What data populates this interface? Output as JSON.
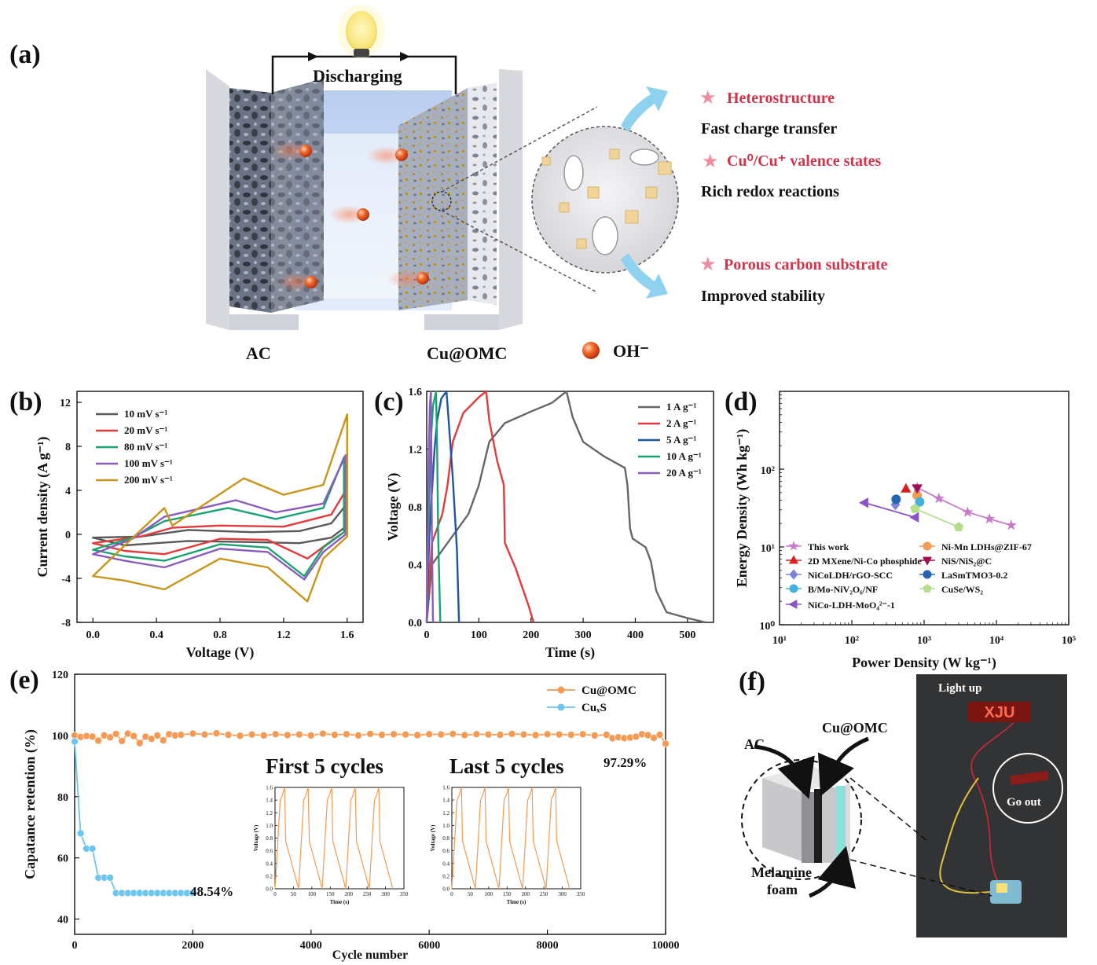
{
  "colors": {
    "cv": [
      "#595959",
      "#e23b3b",
      "#1aa36f",
      "#8a5cc0",
      "#c7951a"
    ],
    "gcd": [
      "#666666",
      "#e23b3b",
      "#1f56a0",
      "#1aa36f",
      "#8a5cc0"
    ],
    "cuomc": "#f39a55",
    "cuxs": "#6ec5ef",
    "accent": "#d2354b",
    "arrow": "#8ed2ef"
  },
  "panel_a": {
    "label": "(a)",
    "discharging": "Discharging",
    "left_electrode": "AC",
    "right_electrode": "Cu@OMC",
    "ion": "OH⁻",
    "features": [
      {
        "title": "Heterostructure",
        "desc": "Fast charge transfer"
      },
      {
        "title": "Cu⁰/Cu⁺ valence states",
        "desc": "Rich redox reactions"
      },
      {
        "title": "Porous carbon substrate",
        "desc": "Improved stability"
      }
    ]
  },
  "panel_f": {
    "label": "(f)",
    "ac": "AC",
    "cuomc": "Cu@OMC",
    "foam_line1": "Melamine",
    "foam_line2": "foam",
    "light_up": "Light up",
    "go_out": "Go out",
    "sign_text": "XJU"
  },
  "chart_data": [
    {
      "id": "b",
      "label": "(b)",
      "type": "line",
      "xlabel": "Voltage (V)",
      "ylabel": "Current density (A g⁻¹)",
      "xlim": [
        -0.1,
        1.7
      ],
      "ylim": [
        -8,
        13
      ],
      "xticks": [
        0.0,
        0.4,
        0.8,
        1.2,
        1.6
      ],
      "yticks": [
        -8,
        -4,
        0,
        4,
        8,
        12
      ],
      "series": [
        {
          "name": "10 mV s⁻¹",
          "x": [
            0,
            0.3,
            0.6,
            1.0,
            1.3,
            1.5,
            1.6,
            1.6,
            1.5,
            1.3,
            1.0,
            0.6,
            0.4,
            0.2,
            0
          ],
          "y": [
            -0.3,
            -0.2,
            0.4,
            0.2,
            0.3,
            1.0,
            2.8,
            0.8,
            -0.3,
            -0.8,
            -0.7,
            -0.6,
            -0.8,
            -1.0,
            -0.3
          ]
        },
        {
          "name": "20 mV s⁻¹",
          "x": [
            0,
            0.3,
            0.5,
            0.8,
            1.2,
            1.5,
            1.6,
            1.6,
            1.5,
            1.35,
            1.1,
            0.8,
            0.45,
            0.2,
            0
          ],
          "y": [
            -0.8,
            -0.2,
            0.6,
            0.8,
            0.7,
            1.8,
            4.2,
            0.4,
            -0.6,
            -2.2,
            -0.5,
            -0.4,
            -1.8,
            -1.5,
            -0.8
          ]
        },
        {
          "name": "80 mV s⁻¹",
          "x": [
            0,
            0.25,
            0.45,
            0.85,
            1.15,
            1.45,
            1.58,
            1.58,
            1.45,
            1.33,
            1.1,
            0.8,
            0.45,
            0.2,
            0
          ],
          "y": [
            -1.4,
            -0.3,
            1.2,
            2.4,
            1.4,
            2.4,
            7.0,
            0.2,
            -1.2,
            -3.8,
            -1.2,
            -0.9,
            -2.4,
            -2.0,
            -1.4
          ]
        },
        {
          "name": "100 mV s⁻¹",
          "x": [
            0,
            0.25,
            0.45,
            0.9,
            1.15,
            1.45,
            1.59,
            1.59,
            1.45,
            1.33,
            1.1,
            0.8,
            0.45,
            0.2,
            0
          ],
          "y": [
            -1.8,
            -0.4,
            1.6,
            3.1,
            2.0,
            2.8,
            7.2,
            0.0,
            -1.6,
            -4.1,
            -1.6,
            -1.3,
            -3.0,
            -2.4,
            -1.8
          ]
        },
        {
          "name": "200 mV s⁻¹",
          "x": [
            0,
            0.2,
            0.45,
            0.5,
            0.95,
            1.2,
            1.45,
            1.6,
            1.6,
            1.45,
            1.35,
            1.1,
            0.8,
            0.45,
            0.2,
            0
          ],
          "y": [
            -3.8,
            -1.0,
            2.4,
            0.8,
            5.1,
            3.6,
            4.5,
            10.9,
            -0.2,
            -2.2,
            -6.1,
            -3.0,
            -2.2,
            -5.0,
            -4.2,
            -3.8
          ]
        }
      ]
    },
    {
      "id": "c",
      "label": "(c)",
      "type": "line",
      "xlabel": "Time (s)",
      "ylabel": "Voltage (V)",
      "xlim": [
        0,
        550
      ],
      "ylim": [
        0,
        1.6
      ],
      "xticks": [
        0,
        100,
        200,
        300,
        400,
        500
      ],
      "yticks": [
        0.0,
        0.4,
        0.8,
        1.2,
        1.6
      ],
      "series": [
        {
          "name": "1 A g⁻¹",
          "x": [
            0,
            10,
            40,
            80,
            100,
            120,
            150,
            200,
            240,
            268,
            280,
            300,
            340,
            380,
            385,
            390,
            395,
            420,
            430,
            440,
            460,
            500,
            535
          ],
          "y": [
            0,
            0.4,
            0.55,
            0.75,
            0.95,
            1.25,
            1.38,
            1.46,
            1.52,
            1.6,
            1.42,
            1.25,
            1.15,
            1.07,
            0.95,
            0.65,
            0.58,
            0.52,
            0.42,
            0.22,
            0.07,
            0.03,
            0
          ]
        },
        {
          "name": "2 A g⁻¹",
          "x": [
            0,
            10,
            30,
            40,
            50,
            70,
            100,
            114,
            120,
            135,
            148,
            150,
            170,
            195,
            205
          ],
          "y": [
            0,
            0.55,
            0.75,
            0.95,
            1.25,
            1.45,
            1.56,
            1.6,
            1.4,
            1.12,
            0.95,
            0.55,
            0.38,
            0.12,
            0
          ]
        },
        {
          "name": "5 A g⁻¹",
          "x": [
            0,
            5,
            15,
            20,
            28,
            38,
            42,
            50,
            58,
            62
          ],
          "y": [
            0,
            0.6,
            1.2,
            1.4,
            1.55,
            1.6,
            1.4,
            1.0,
            0.5,
            0
          ]
        },
        {
          "name": "10 A g⁻¹",
          "x": [
            0,
            3,
            8,
            12,
            18,
            20,
            22,
            26
          ],
          "y": [
            0,
            0.6,
            1.25,
            1.5,
            1.6,
            1.2,
            0.6,
            0
          ]
        },
        {
          "name": "20 A g⁻¹",
          "x": [
            0,
            2,
            4,
            6,
            8,
            9,
            10,
            12
          ],
          "y": [
            0,
            0.6,
            1.2,
            1.5,
            1.6,
            1.2,
            0.6,
            0
          ]
        }
      ]
    },
    {
      "id": "d",
      "label": "(d)",
      "type": "scatter",
      "scale": "log",
      "xlabel": "Power Density (W kg⁻¹)",
      "ylabel": "Energy Density (Wh kg⁻¹)",
      "xlim": [
        10,
        100000
      ],
      "ylim": [
        1,
        1000
      ],
      "xtick_labels": [
        "10¹",
        "10²",
        "10³",
        "10⁴",
        "10⁵"
      ],
      "ytick_labels": [
        "10⁰",
        "10¹",
        "10²"
      ],
      "series": [
        {
          "name": "This work",
          "marker": "star",
          "color": "#c77bc7",
          "x": [
            800,
            1600,
            4000,
            8000,
            16000
          ],
          "y": [
            58,
            42,
            28,
            23,
            19
          ]
        },
        {
          "name": "Ni-Mn LDHs@ZIF-67",
          "marker": "circle",
          "color": "#f39a55",
          "x": [
            800
          ],
          "y": [
            46
          ]
        },
        {
          "name": "2D MXene/Ni-Co phosphide",
          "marker": "triangle",
          "color": "#d42020",
          "x": [
            560
          ],
          "y": [
            56
          ]
        },
        {
          "name": "NiS/NiS₂@C",
          "marker": "triangle-down",
          "color": "#a01050",
          "x": [
            800
          ],
          "y": [
            57
          ]
        },
        {
          "name": "NiCoLDH/rGO-SCC",
          "marker": "diamond",
          "color": "#7b85d8",
          "x": [
            400
          ],
          "y": [
            35
          ]
        },
        {
          "name": "LaSmTMO3-0.2",
          "marker": "circle",
          "color": "#2266b2",
          "x": [
            410
          ],
          "y": [
            41
          ]
        },
        {
          "name": "B/Mo-NiV₂O₆/NF",
          "marker": "circle",
          "color": "#45b0e0",
          "x": [
            870
          ],
          "y": [
            38
          ]
        },
        {
          "name": "CuSe/WS₂",
          "marker": "pentagon",
          "color": "#b4de8c",
          "x": [
            750,
            3000
          ],
          "y": [
            31,
            18
          ]
        },
        {
          "name": "NiCo-LDH-MoO₄²⁻-1",
          "marker": "triangle-left",
          "color": "#8b55c8",
          "x": [
            150,
            750
          ],
          "y": [
            37,
            24
          ]
        }
      ]
    },
    {
      "id": "e",
      "label": "(e)",
      "type": "scatter",
      "xlabel": "Cycle number",
      "ylabel": "Capatance retention (%)",
      "xlim": [
        0,
        10000
      ],
      "ylim": [
        35,
        120
      ],
      "xticks": [
        0,
        2000,
        4000,
        6000,
        8000,
        10000
      ],
      "yticks": [
        40,
        60,
        80,
        100,
        120
      ],
      "series": [
        {
          "name": "Cu@OMC",
          "color": "#f39a55",
          "x": [
            0,
            100,
            200,
            300,
            400,
            500,
            600,
            700,
            800,
            900,
            1000,
            1100,
            1200,
            1300,
            1400,
            1500,
            1600,
            1700,
            1800,
            2000,
            2200,
            2400,
            2600,
            2800,
            3000,
            3200,
            3400,
            3600,
            3800,
            4000,
            4200,
            4400,
            4600,
            4800,
            5000,
            5200,
            5400,
            5600,
            5800,
            6000,
            6200,
            6400,
            6600,
            6800,
            7000,
            7200,
            7400,
            7600,
            7800,
            8000,
            8200,
            8400,
            8600,
            8800,
            9000,
            9100,
            9200,
            9300,
            9400,
            9500,
            9600,
            9700,
            9800,
            9900,
            10000
          ],
          "y": [
            100,
            99.5,
            99.8,
            99.6,
            98.3,
            100,
            99.4,
            100.5,
            98.2,
            100.6,
            99.8,
            97.5,
            99.6,
            98.9,
            100,
            98.4,
            100.4,
            100,
            100.2,
            100.6,
            100.3,
            100.7,
            100.2,
            99.9,
            100.3,
            100,
            100.4,
            100.1,
            100.3,
            100,
            100.6,
            100.2,
            100.4,
            100,
            100.5,
            100.2,
            100.4,
            100.3,
            100.1,
            100.4,
            100.3,
            100.5,
            100.1,
            100.4,
            100.3,
            100.2,
            100.5,
            100.3,
            100.1,
            100.4,
            100.3,
            100.2,
            100.4,
            100,
            100.2,
            99.1,
            99.4,
            99.1,
            99.3,
            99.6,
            100.4,
            100.1,
            99.2,
            100.2,
            97.3
          ]
        },
        {
          "name": "CuₓS",
          "color": "#6ec5ef",
          "x": [
            0,
            100,
            200,
            300,
            400,
            500,
            600,
            700,
            800,
            900,
            1000,
            1100,
            1200,
            1300,
            1400,
            1500,
            1600,
            1700,
            1800,
            1900,
            2000
          ],
          "y": [
            98,
            68,
            63,
            63,
            53.5,
            53.5,
            53.5,
            48.5,
            48.5,
            48.5,
            48.5,
            48.5,
            48.5,
            48.5,
            48.5,
            48.5,
            48.5,
            48.5,
            48.5,
            48.5,
            48.5
          ]
        }
      ],
      "annotations": {
        "cuomc_final": "97.29%",
        "cuxs_final": "48.54%"
      },
      "insets": [
        {
          "title": "First 5 cycles",
          "xlabel": "Time (s)",
          "ylabel": "Voltage (V)",
          "xticks": [
            0,
            50,
            100,
            150,
            200,
            250,
            300,
            350
          ],
          "yticks": [
            0.0,
            0.2,
            0.4,
            0.6,
            0.8,
            1.0,
            1.2,
            1.4,
            1.6
          ],
          "cycles": 5,
          "period": 64
        },
        {
          "title": "Last 5 cycles",
          "xlabel": "Time (s)",
          "ylabel": "Voltage (V)",
          "xticks": [
            0,
            50,
            100,
            150,
            200,
            250,
            300,
            350
          ],
          "yticks": [
            0.0,
            0.2,
            0.4,
            0.6,
            0.8,
            1.0,
            1.2,
            1.4,
            1.6
          ],
          "cycles": 5,
          "period": 64
        }
      ]
    }
  ]
}
